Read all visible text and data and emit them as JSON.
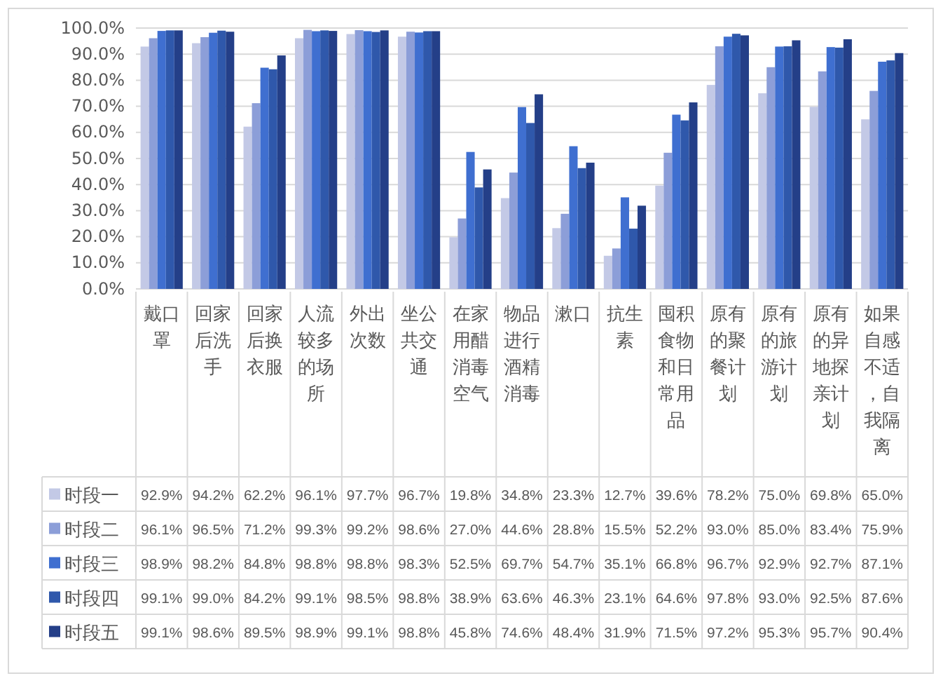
{
  "chart_data": {
    "type": "bar",
    "categories": [
      "戴口罩",
      "回家后洗手",
      "回家后换衣服",
      "人流较多的场所",
      "外出次数",
      "坐公共交通",
      "在家用醋消毒空气",
      "物品进行酒精消毒",
      "漱口",
      "抗生素",
      "囤积食物和日常用品",
      "原有的聚餐计划",
      "原有的旅游计划",
      "原有的异地探亲计划",
      "如果自感不适，自我隔离"
    ],
    "series": [
      {
        "name": "时段一",
        "color": "#c3c9e6",
        "values": [
          92.9,
          94.2,
          62.2,
          96.1,
          97.7,
          96.7,
          19.8,
          34.8,
          23.3,
          12.7,
          39.6,
          78.2,
          75.0,
          69.8,
          65.0
        ],
        "value_labels": [
          "92.9%",
          "94.2%",
          "62.2%",
          "96.1%",
          "97.7%",
          "96.7%",
          "19.8%",
          "34.8%",
          "23.3%",
          "12.7%",
          "39.6%",
          "78.2%",
          "75.0%",
          "69.8%",
          "65.0%"
        ]
      },
      {
        "name": "时段二",
        "color": "#8c9ed8",
        "values": [
          96.1,
          96.5,
          71.2,
          99.3,
          99.2,
          98.6,
          27.0,
          44.6,
          28.8,
          15.5,
          52.2,
          93.0,
          85.0,
          83.4,
          75.9
        ],
        "value_labels": [
          "96.1%",
          "96.5%",
          "71.2%",
          "99.3%",
          "99.2%",
          "98.6%",
          "27.0%",
          "44.6%",
          "28.8%",
          "15.5%",
          "52.2%",
          "93.0%",
          "85.0%",
          "83.4%",
          "75.9%"
        ]
      },
      {
        "name": "时段三",
        "color": "#3f6fd0",
        "values": [
          98.9,
          98.2,
          84.8,
          98.8,
          98.8,
          98.3,
          52.5,
          69.7,
          54.7,
          35.1,
          66.8,
          96.7,
          92.9,
          92.7,
          87.1
        ],
        "value_labels": [
          "98.9%",
          "98.2%",
          "84.8%",
          "98.8%",
          "98.8%",
          "98.3%",
          "52.5%",
          "69.7%",
          "54.7%",
          "35.1%",
          "66.8%",
          "96.7%",
          "92.9%",
          "92.7%",
          "87.1%"
        ]
      },
      {
        "name": "时段四",
        "color": "#2f58ab",
        "values": [
          99.1,
          99.0,
          84.2,
          99.1,
          98.5,
          98.8,
          38.9,
          63.6,
          46.3,
          23.1,
          64.6,
          97.8,
          93.0,
          92.5,
          87.6
        ],
        "value_labels": [
          "99.1%",
          "99.0%",
          "84.2%",
          "99.1%",
          "98.5%",
          "98.8%",
          "38.9%",
          "63.6%",
          "46.3%",
          "23.1%",
          "64.6%",
          "97.8%",
          "93.0%",
          "92.5%",
          "87.6%"
        ]
      },
      {
        "name": "时段五",
        "color": "#243f88",
        "values": [
          99.1,
          98.6,
          89.5,
          98.9,
          99.1,
          98.8,
          45.8,
          74.6,
          48.4,
          31.9,
          71.5,
          97.2,
          95.3,
          95.7,
          90.4
        ],
        "value_labels": [
          "99.1%",
          "98.6%",
          "89.5%",
          "98.9%",
          "99.1%",
          "98.8%",
          "45.8%",
          "74.6%",
          "48.4%",
          "31.9%",
          "71.5%",
          "97.2%",
          "95.3%",
          "95.7%",
          "90.4%"
        ]
      }
    ],
    "ylim": [
      0,
      100
    ],
    "yticks": [
      {
        "value": 0,
        "label": "0.0%"
      },
      {
        "value": 10,
        "label": "10.0%"
      },
      {
        "value": 20,
        "label": "20.0%"
      },
      {
        "value": 30,
        "label": "30.0%"
      },
      {
        "value": 40,
        "label": "40.0%"
      },
      {
        "value": 50,
        "label": "50.0%"
      },
      {
        "value": 60,
        "label": "60.0%"
      },
      {
        "value": 70,
        "label": "70.0%"
      },
      {
        "value": 80,
        "label": "80.0%"
      },
      {
        "value": 90,
        "label": "90.0%"
      },
      {
        "value": 100,
        "label": "100.0%"
      }
    ],
    "grid": "y",
    "legend": "bottom"
  }
}
